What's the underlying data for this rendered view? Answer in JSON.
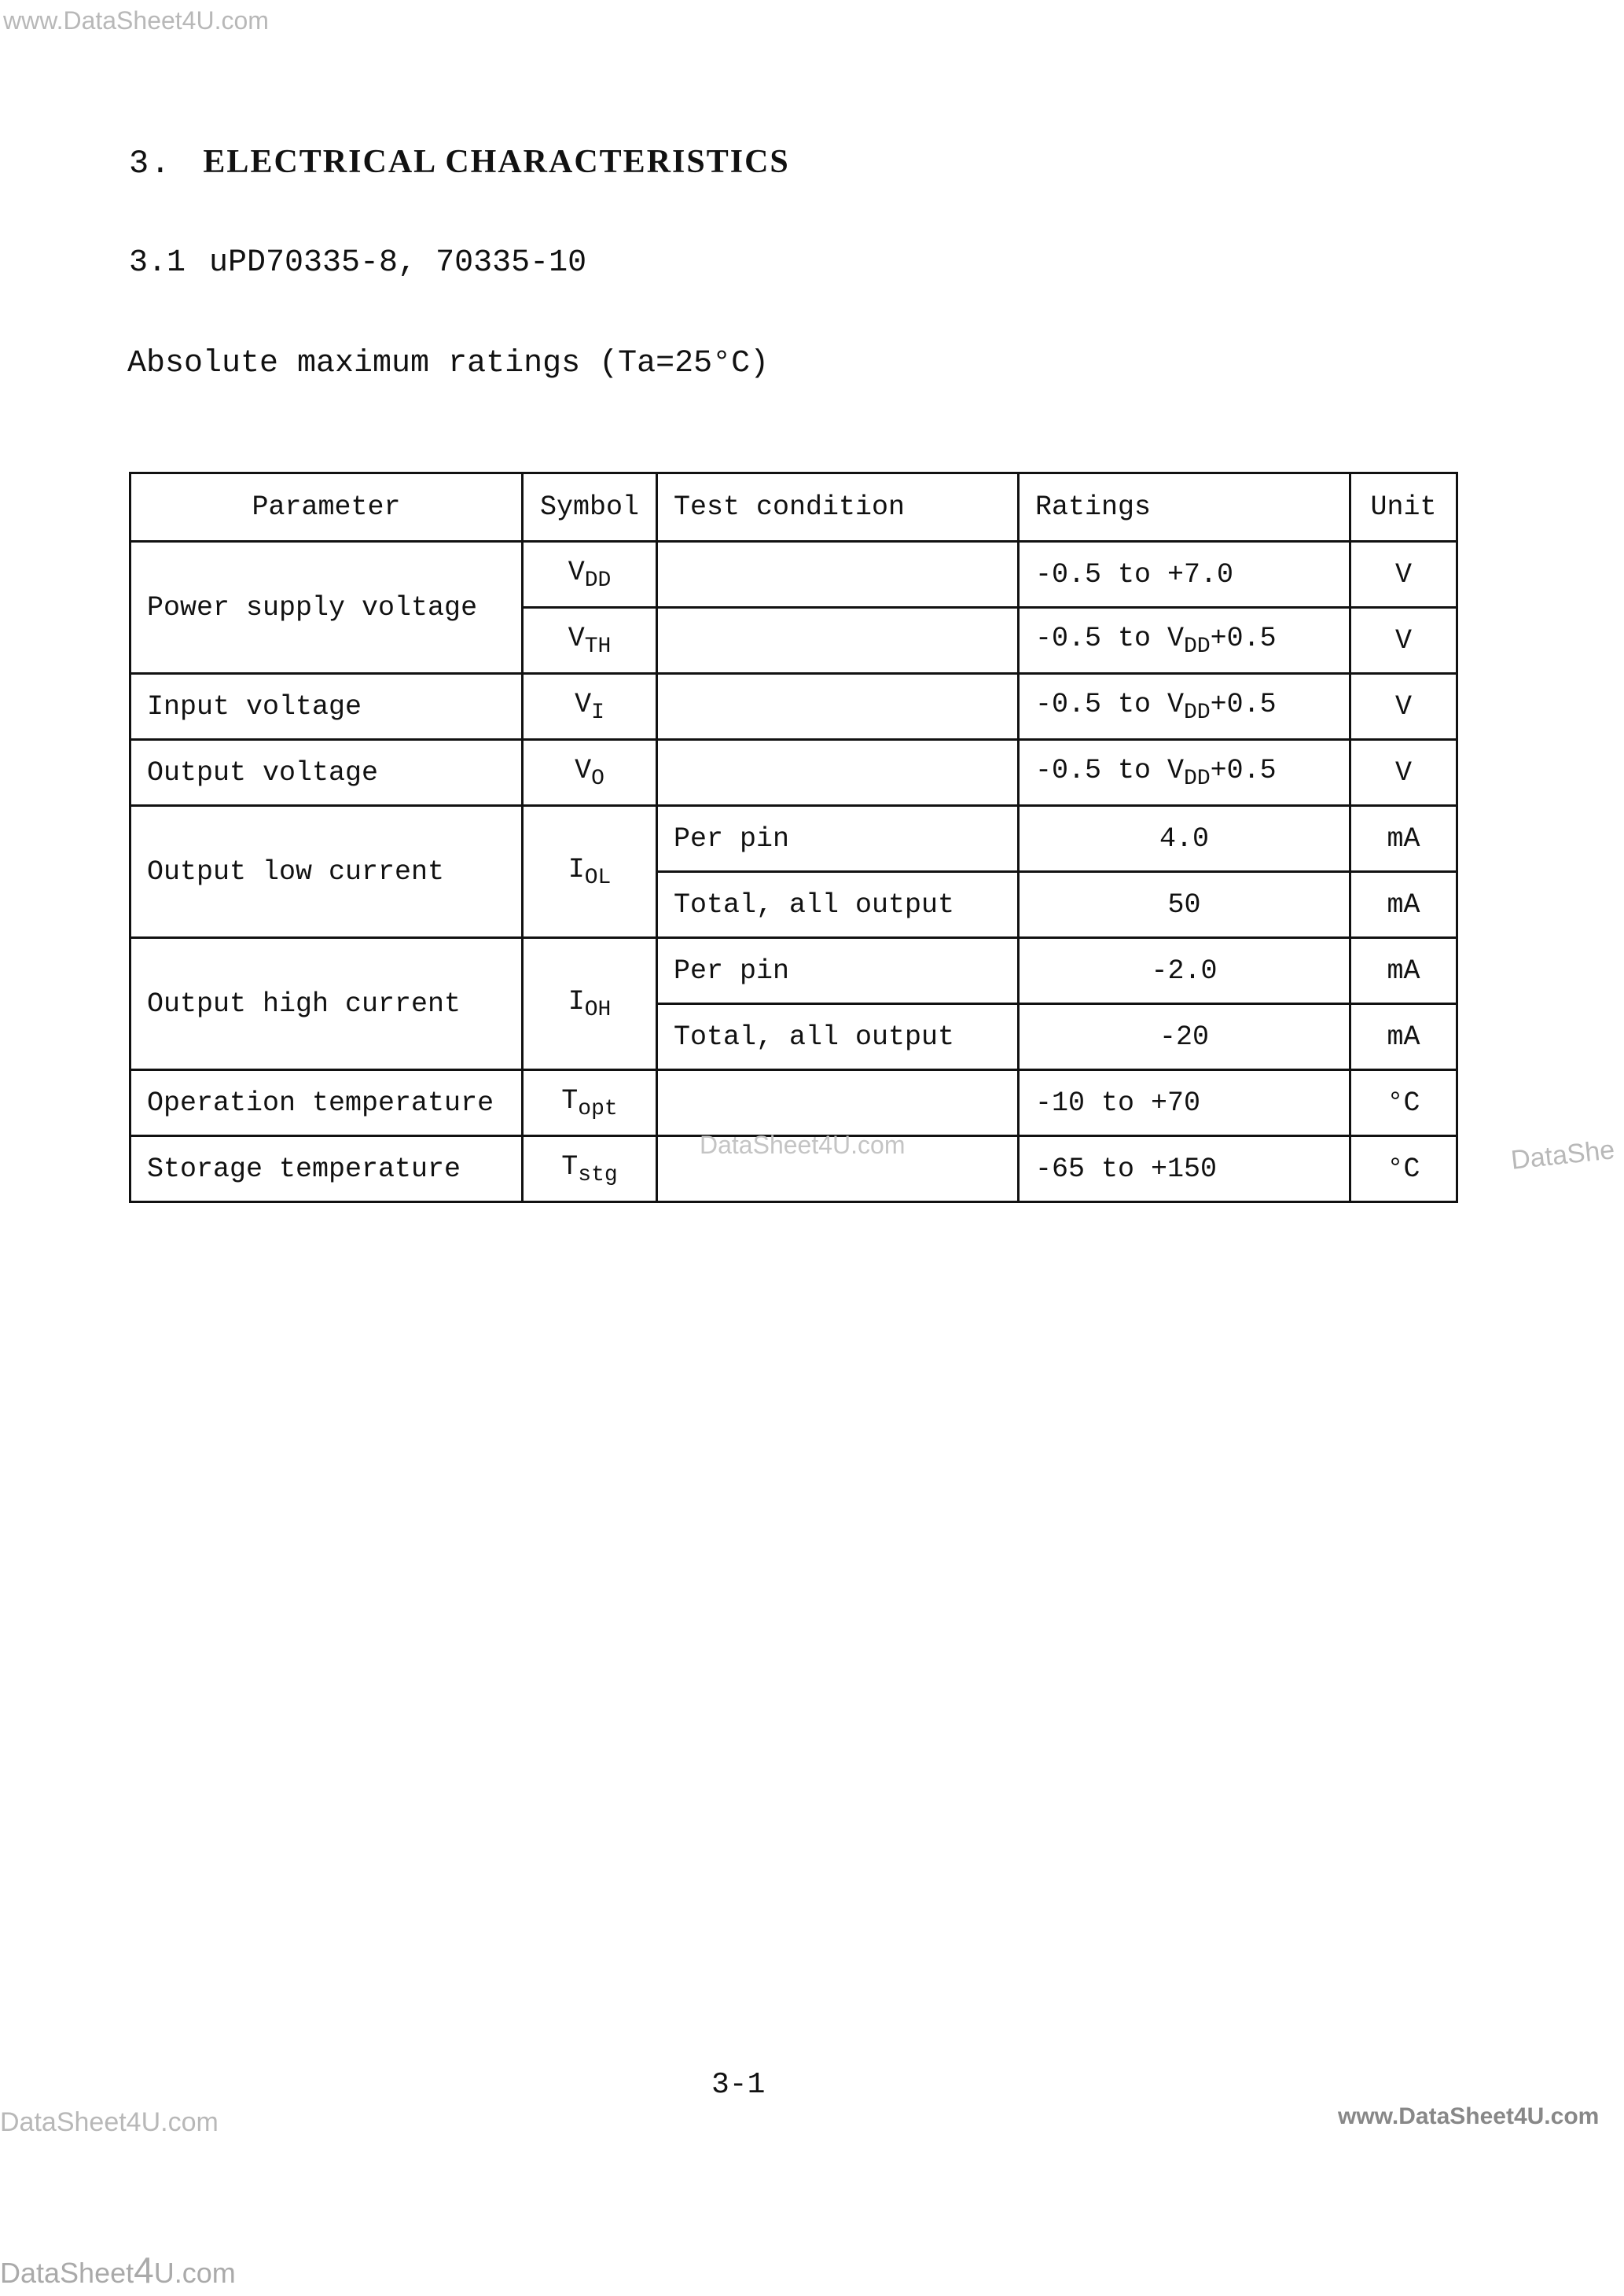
{
  "watermarks": {
    "top_left": "www.DataSheet4U.com",
    "middle": "DataSheet4U.com",
    "right_edge": "DataShe",
    "bottom_left": "DataSheet4U.com",
    "bottom_right": "www.DataSheet4U.com",
    "bottom_prefix": "DataSheet",
    "bottom_four": "4",
    "bottom_suffix": "U.com"
  },
  "section": {
    "number": "3.",
    "title": "ELECTRICAL CHARACTERISTICS"
  },
  "subsection": {
    "number": "3.1",
    "title": "uPD70335-8, 70335-10"
  },
  "table_title": "Absolute maximum ratings (Ta=25°C)",
  "table": {
    "headers": [
      "Parameter",
      "Symbol",
      "Test condition",
      "Ratings",
      "Unit"
    ],
    "rows": [
      {
        "parameter": "Power supply voltage",
        "symbol": "V",
        "symbol_sub": "DD",
        "condition": "",
        "rating": "-0.5 to +7.0",
        "unit": "V"
      },
      {
        "symbol": "V",
        "symbol_sub": "TH",
        "condition": "",
        "rating_pre": "-0.5 to V",
        "rating_sub": "DD",
        "rating_post": "+0.5",
        "unit": "V"
      },
      {
        "parameter": "Input voltage",
        "symbol": "V",
        "symbol_sub": "I",
        "condition": "",
        "rating_pre": "-0.5 to V",
        "rating_sub": "DD",
        "rating_post": "+0.5",
        "unit": "V"
      },
      {
        "parameter": "Output voltage",
        "symbol": "V",
        "symbol_sub": "O",
        "condition": "",
        "rating_pre": "-0.5 to V",
        "rating_sub": "DD",
        "rating_post": "+0.5",
        "unit": "V"
      },
      {
        "parameter": "Output low current",
        "symbol": "I",
        "symbol_sub": "OL",
        "condition": "Per pin",
        "rating": "4.0",
        "unit": "mA"
      },
      {
        "condition": "Total, all output",
        "rating": "50",
        "unit": "mA"
      },
      {
        "parameter": "Output high current",
        "symbol": "I",
        "symbol_sub": "OH",
        "condition": "Per pin",
        "rating": "-2.0",
        "unit": "mA"
      },
      {
        "condition": "Total, all output",
        "rating": "-20",
        "unit": "mA"
      },
      {
        "parameter": "Operation temperature",
        "symbol": "T",
        "symbol_sub": "opt",
        "condition": "",
        "rating": "-10 to +70",
        "unit": "°C"
      },
      {
        "parameter": "Storage temperature",
        "symbol": "T",
        "symbol_sub": "stg",
        "condition": "",
        "rating": "-65 to +150",
        "unit": "°C"
      }
    ]
  },
  "page_number": "3-1"
}
